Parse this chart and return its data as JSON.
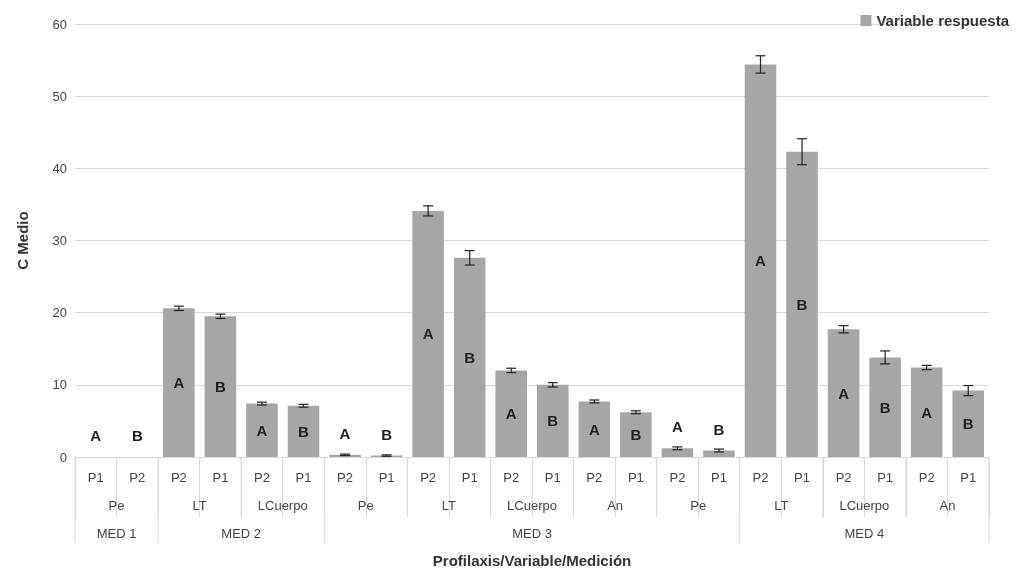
{
  "chart_data": {
    "type": "bar",
    "xlabel": "Profilaxis/Variable/Medición",
    "ylabel": "C Medio",
    "categories": [
      "P1",
      "P2",
      "P2",
      "P1",
      "P2",
      "P1",
      "P2",
      "P1",
      "P2",
      "P1",
      "P2",
      "P1",
      "P2",
      "P1",
      "P2",
      "P1",
      "P2",
      "P1",
      "P2",
      "P1",
      "P2",
      "P1"
    ],
    "series": [
      {
        "name": "Variable respuesta",
        "color": "#a6a6a6",
        "values": [
          0,
          0,
          20.6,
          19.5,
          7.4,
          7.1,
          0.3,
          0.2,
          34.1,
          27.6,
          12.0,
          10.0,
          7.7,
          6.2,
          1.2,
          0.9,
          54.4,
          42.3,
          17.7,
          13.8,
          12.4,
          9.2
        ],
        "errors": [
          null,
          null,
          0.3,
          0.3,
          0.2,
          0.2,
          0.1,
          0.1,
          0.7,
          1.0,
          0.3,
          0.3,
          0.2,
          0.2,
          0.2,
          0.2,
          1.2,
          1.8,
          0.5,
          0.9,
          0.3,
          0.7
        ],
        "value_labels": [
          "A",
          "B",
          "A",
          "B",
          "A",
          "B",
          "A",
          "B",
          "A",
          "B",
          "A",
          "B",
          "A",
          "B",
          "A",
          "B",
          "A",
          "B",
          "A",
          "B",
          "A",
          "B"
        ]
      }
    ],
    "annotations": [
      "Pe",
      "LT",
      "LCuerpo",
      "Pe",
      "LT",
      "LCuerpo",
      "An",
      "Pe",
      "LT",
      "LCuerpo",
      "An",
      "MED 1",
      "MED 2",
      "MED 3",
      "MED 4"
    ],
    "ylim": [
      0,
      60
    ],
    "yticks": [
      0,
      10,
      20,
      30,
      40,
      50,
      60
    ],
    "grid": "y",
    "legend": "top right"
  }
}
